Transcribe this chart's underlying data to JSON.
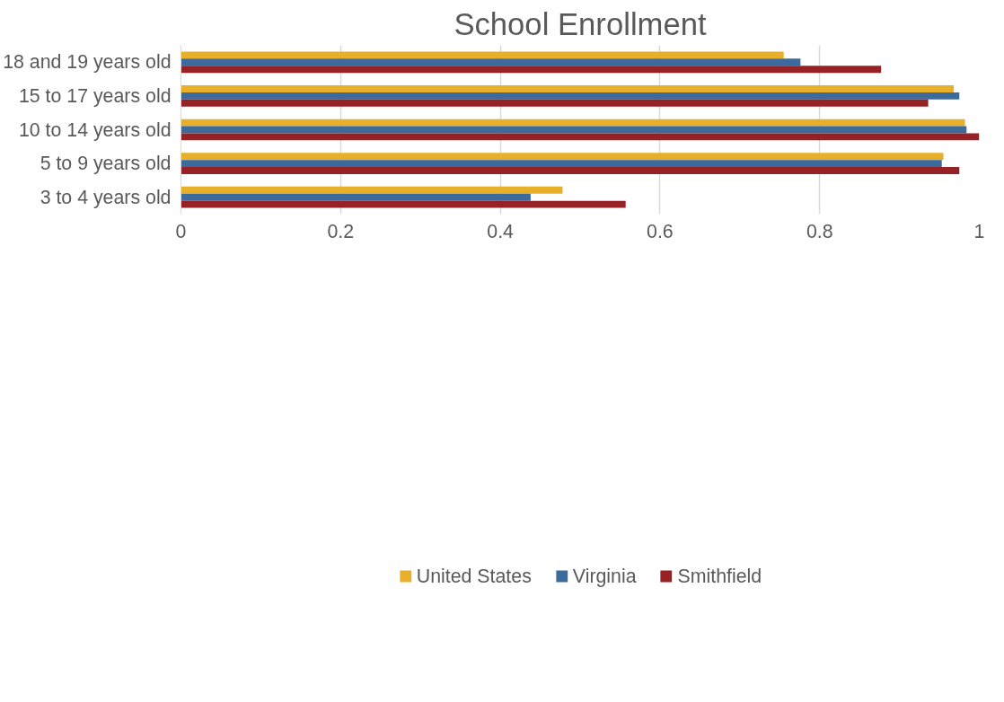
{
  "chart_data": {
    "type": "bar",
    "orientation": "horizontal",
    "title": "School Enrollment",
    "categories": [
      "18 and 19 years old",
      "15 to 17 years old",
      "10 to 14 years old",
      "5 to 9 years old",
      "3 to 4 years old"
    ],
    "series": [
      {
        "name": "United States",
        "color": "#e8b02a",
        "values": [
          0.755,
          0.968,
          0.982,
          0.955,
          0.478
        ]
      },
      {
        "name": "Virginia",
        "color": "#3d6a9c",
        "values": [
          0.776,
          0.975,
          0.984,
          0.953,
          0.438
        ]
      },
      {
        "name": "Smithfield",
        "color": "#962225",
        "values": [
          0.877,
          0.936,
          1.0,
          0.975,
          0.557
        ]
      }
    ],
    "xlim": [
      0,
      1
    ],
    "xticks": [
      0,
      0.2,
      0.4,
      0.6,
      0.8,
      1
    ],
    "grid": "x",
    "legend": "bottom"
  }
}
